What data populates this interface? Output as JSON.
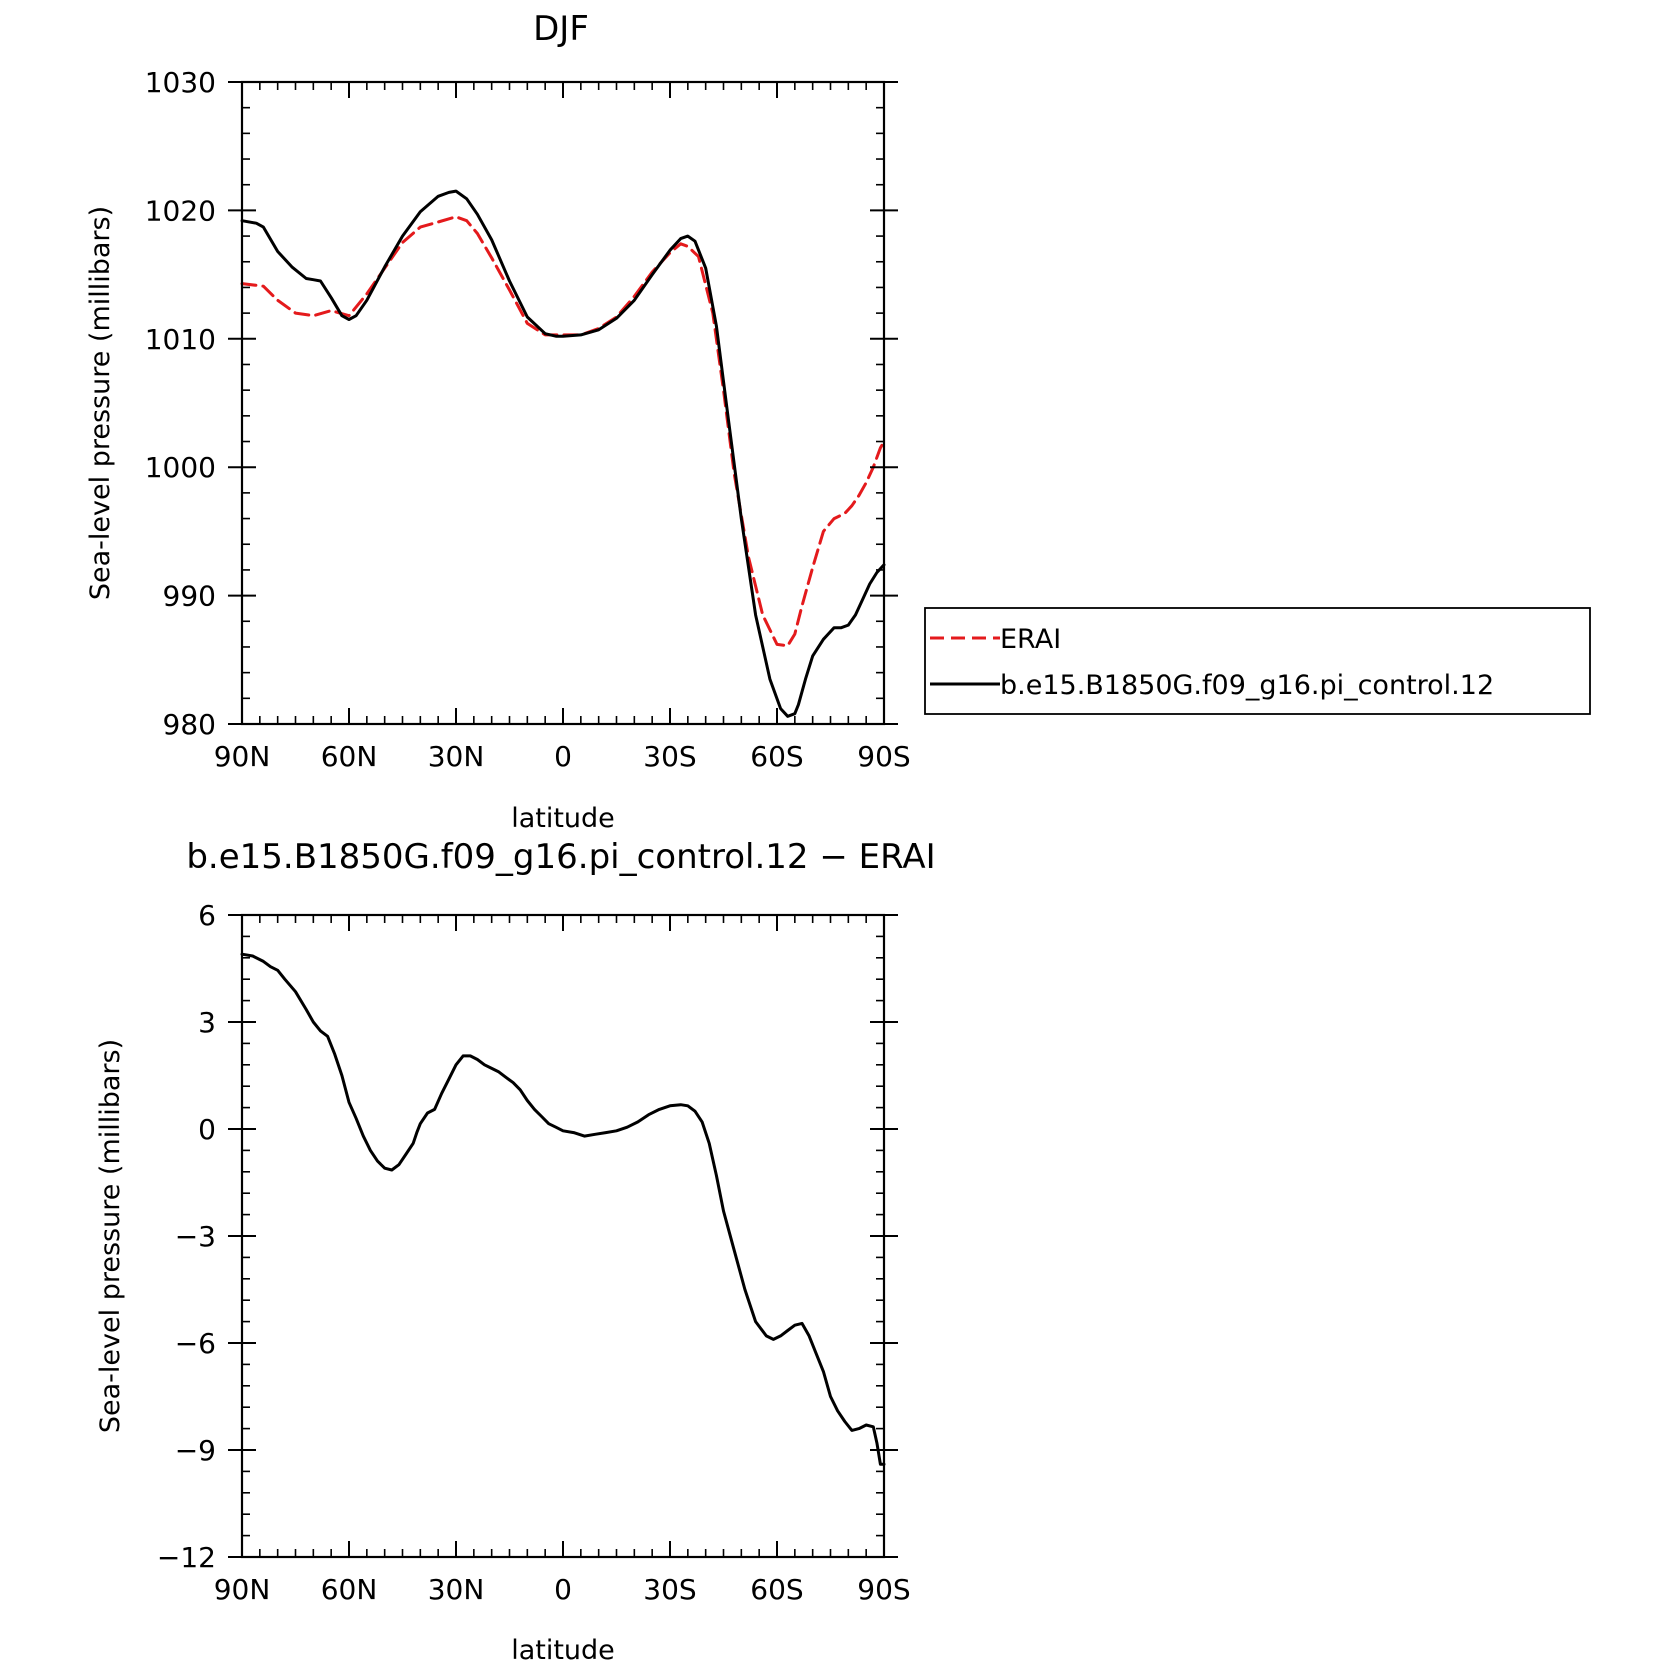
{
  "chart_data": [
    {
      "type": "line",
      "title": "DJF",
      "xlabel": "latitude",
      "ylabel": "Sea-level pressure (millibars)",
      "xticks": [
        "90N",
        "60N",
        "30N",
        "0",
        "30S",
        "60S",
        "90S"
      ],
      "yticks": [
        "980",
        "990",
        "1000",
        "1010",
        "1020",
        "1030"
      ],
      "xlim": [
        90,
        -90
      ],
      "ylim": [
        980,
        1030
      ],
      "legend_position": "right",
      "series": [
        {
          "name": "ERAI",
          "color": "#e41a1c",
          "dash": "dashed",
          "x": [
            90,
            84,
            80,
            75,
            70,
            65,
            60,
            55,
            50,
            45,
            40,
            35,
            30,
            27,
            24,
            20,
            15,
            10,
            5,
            0,
            -5,
            -10,
            -15,
            -20,
            -25,
            -30,
            -33,
            -35,
            -38,
            -42,
            -45,
            -48,
            -52,
            -56,
            -60,
            -63,
            -65,
            -67,
            -70,
            -73,
            -76,
            -79,
            -81,
            -83,
            -85,
            -87,
            -89,
            -90
          ],
          "y": [
            1014.3,
            1014.1,
            1013.0,
            1012.0,
            1011.8,
            1012.2,
            1011.8,
            1013.5,
            1015.5,
            1017.5,
            1018.7,
            1019.1,
            1019.5,
            1019.2,
            1018.2,
            1016.3,
            1013.8,
            1011.2,
            1010.3,
            1010.3,
            1010.3,
            1010.8,
            1011.7,
            1013.3,
            1015.2,
            1016.7,
            1017.4,
            1017.2,
            1016.4,
            1012.0,
            1006.0,
            999.5,
            993.0,
            988.5,
            986.2,
            986.1,
            987.0,
            989.2,
            992.2,
            995.0,
            996.0,
            996.4,
            997.0,
            997.8,
            998.8,
            1000.0,
            1001.5,
            1002.0
          ]
        },
        {
          "name": "b.e15.B1850G.f09_g16.pi_control.12",
          "color": "#000000",
          "dash": "solid",
          "x": [
            90,
            86,
            84,
            80,
            76,
            72,
            70,
            68,
            65,
            62,
            60,
            58,
            55,
            50,
            45,
            40,
            35,
            32,
            30,
            27,
            24,
            20,
            15,
            10,
            5,
            2,
            0,
            -5,
            -10,
            -15,
            -20,
            -25,
            -30,
            -33,
            -35,
            -37,
            -40,
            -43,
            -46,
            -50,
            -54,
            -58,
            -61,
            -63,
            -65,
            -66,
            -68,
            -70,
            -73,
            -76,
            -78,
            -80,
            -82,
            -84,
            -86,
            -88,
            -90
          ],
          "y": [
            1019.2,
            1019.0,
            1018.7,
            1016.8,
            1015.6,
            1014.7,
            1014.6,
            1014.5,
            1013.2,
            1011.8,
            1011.5,
            1011.8,
            1013.0,
            1015.6,
            1018.0,
            1019.9,
            1021.1,
            1021.4,
            1021.5,
            1020.9,
            1019.7,
            1017.7,
            1014.5,
            1011.7,
            1010.4,
            1010.2,
            1010.2,
            1010.3,
            1010.7,
            1011.6,
            1013.0,
            1015.0,
            1016.9,
            1017.8,
            1018.0,
            1017.6,
            1015.5,
            1011.0,
            1004.5,
            996.0,
            988.5,
            983.5,
            981.2,
            980.6,
            980.8,
            981.5,
            983.5,
            985.3,
            986.6,
            987.5,
            987.5,
            987.7,
            988.5,
            989.7,
            990.9,
            991.8,
            992.4
          ]
        }
      ]
    },
    {
      "type": "line",
      "title": "b.e15.B1850G.f09_g16.pi_control.12 − ERAI",
      "xlabel": "latitude",
      "ylabel": "Sea-level pressure (millibars)",
      "xticks": [
        "90N",
        "60N",
        "30N",
        "0",
        "30S",
        "60S",
        "90S"
      ],
      "yticks": [
        "−12",
        "−9",
        "−6",
        "−3",
        "0",
        "3",
        "6"
      ],
      "xlim": [
        90,
        -90
      ],
      "ylim": [
        -12,
        6
      ],
      "series": [
        {
          "color": "#000000",
          "dash": "solid",
          "x": [
            90,
            87,
            84,
            82,
            80,
            78,
            75,
            72,
            70,
            68,
            66,
            64,
            62,
            60,
            58,
            56,
            54,
            52,
            50,
            48,
            46,
            44,
            42,
            41,
            40,
            38,
            36,
            34,
            32,
            30,
            28,
            26,
            24,
            22,
            20,
            18,
            16,
            14,
            12,
            10,
            8,
            6,
            4,
            2,
            0,
            -3,
            -6,
            -9,
            -12,
            -15,
            -18,
            -21,
            -24,
            -27,
            -30,
            -33,
            -35,
            -37,
            -39,
            -41,
            -43,
            -45,
            -48,
            -51,
            -54,
            -57,
            -59,
            -61,
            -63,
            -65,
            -67,
            -69,
            -71,
            -73,
            -75,
            -77,
            -79,
            -81,
            -83,
            -85,
            -87,
            -88,
            -89,
            -90
          ],
          "y": [
            4.9,
            4.85,
            4.7,
            4.55,
            4.45,
            4.2,
            3.85,
            3.35,
            3.0,
            2.75,
            2.6,
            2.1,
            1.5,
            0.75,
            0.3,
            -0.2,
            -0.6,
            -0.9,
            -1.1,
            -1.15,
            -1.0,
            -0.7,
            -0.4,
            -0.1,
            0.15,
            0.45,
            0.55,
            1.0,
            1.4,
            1.8,
            2.05,
            2.05,
            1.95,
            1.8,
            1.7,
            1.6,
            1.45,
            1.3,
            1.1,
            0.8,
            0.55,
            0.35,
            0.15,
            0.05,
            -0.05,
            -0.1,
            -0.2,
            -0.15,
            -0.1,
            -0.05,
            0.05,
            0.2,
            0.4,
            0.55,
            0.65,
            0.68,
            0.65,
            0.5,
            0.2,
            -0.4,
            -1.3,
            -2.3,
            -3.4,
            -4.5,
            -5.4,
            -5.8,
            -5.9,
            -5.8,
            -5.65,
            -5.5,
            -5.45,
            -5.8,
            -6.3,
            -6.8,
            -7.5,
            -7.9,
            -8.2,
            -8.45,
            -8.4,
            -8.3,
            -8.35,
            -8.8,
            -9.4,
            -9.4
          ]
        }
      ]
    }
  ]
}
